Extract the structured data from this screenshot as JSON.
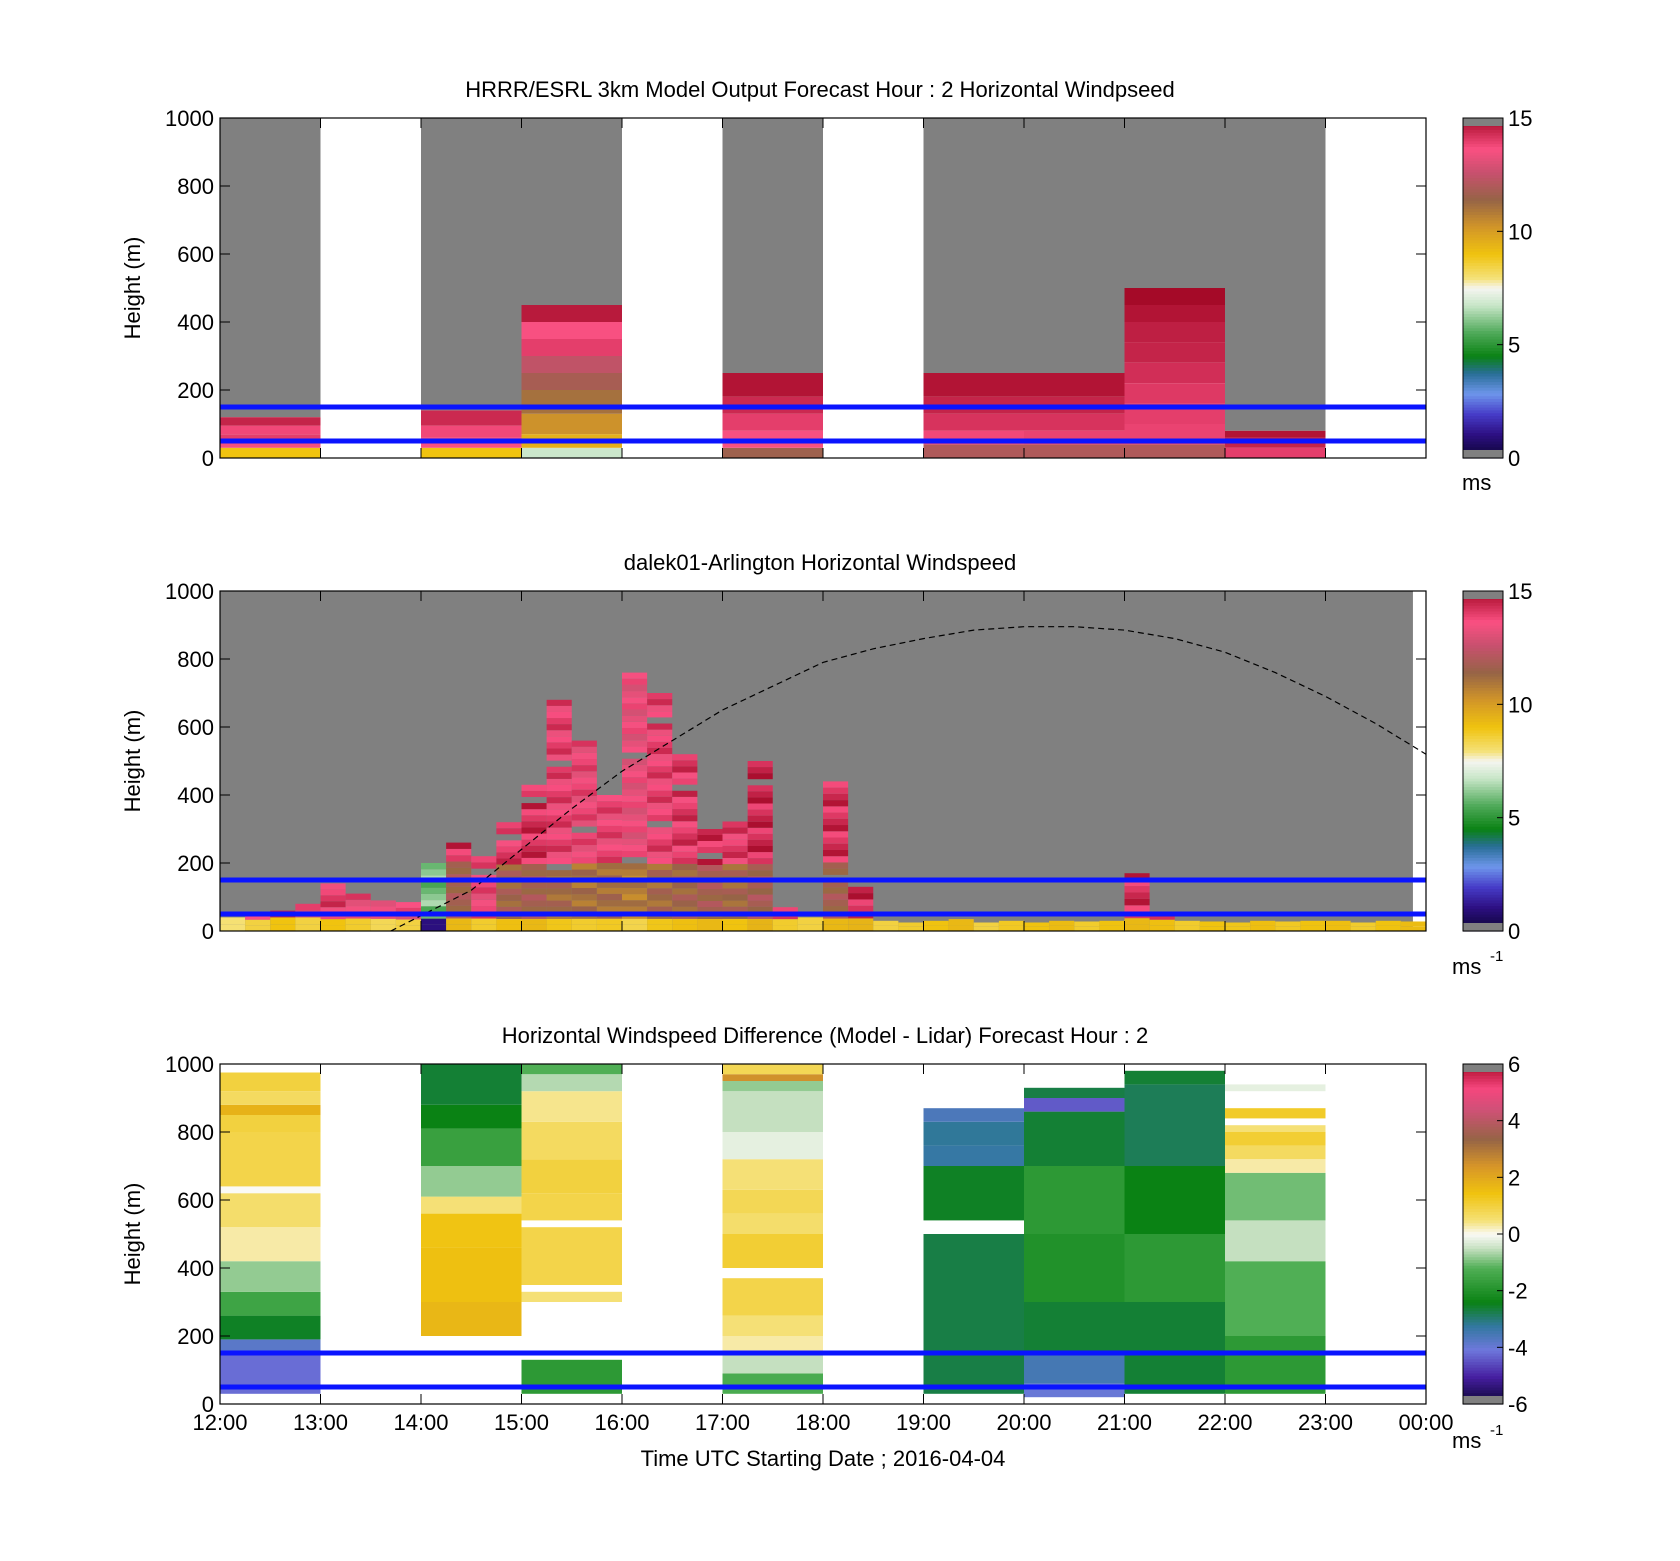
{
  "chart_data": [
    {
      "type": "heatmap",
      "title": "HRRR/ESRL 3km Model Output   Forecast Hour : 2 Horizontal Windpseed",
      "ylabel": "Height (m)",
      "ylim": [
        0,
        1000
      ],
      "yticks": [
        "0",
        "200",
        "400",
        "600",
        "800",
        "1000"
      ],
      "xlim": [
        12,
        24
      ],
      "colorbar": {
        "range": [
          0,
          15
        ],
        "ticks": [
          "0",
          "5",
          "10",
          "15"
        ],
        "unit_label": "ms"
      },
      "reference_lines": [
        50,
        150
      ],
      "reference_color": "#0a14ff",
      "missing_color": "#808080",
      "segments": [
        {
          "t0": 12,
          "t1": 13,
          "top": 120,
          "levels": [
            [
              0,
              30,
              9
            ],
            [
              30,
              50,
              13.5
            ],
            [
              50,
              70,
              14
            ],
            [
              70,
              95,
              13.8
            ],
            [
              95,
              120,
              14.5
            ]
          ]
        },
        {
          "t0": 14,
          "t1": 15,
          "top": 140,
          "levels": [
            [
              0,
              30,
              9
            ],
            [
              30,
              60,
              13.6
            ],
            [
              60,
              95,
              13.8
            ],
            [
              95,
              140,
              14.4
            ]
          ]
        },
        {
          "t0": 15,
          "t1": 16,
          "top": 450,
          "levels": [
            [
              0,
              30,
              6.8
            ],
            [
              30,
              70,
              9.5
            ],
            [
              70,
              130,
              10.3
            ],
            [
              130,
              200,
              11.1
            ],
            [
              200,
              250,
              11.8
            ],
            [
              250,
              300,
              12.4
            ],
            [
              300,
              350,
              14
            ],
            [
              350,
              400,
              13.6
            ],
            [
              400,
              450,
              14.7
            ]
          ]
        },
        {
          "t0": 17,
          "t1": 18,
          "top": 250,
          "levels": [
            [
              0,
              30,
              11.6
            ],
            [
              30,
              80,
              13.6
            ],
            [
              80,
              130,
              14
            ],
            [
              130,
              180,
              14.4
            ],
            [
              180,
              250,
              14.8
            ]
          ]
        },
        {
          "t0": 19,
          "t1": 20,
          "top": 250,
          "levels": [
            [
              0,
              40,
              12
            ],
            [
              40,
              80,
              13.8
            ],
            [
              80,
              130,
              14.2
            ],
            [
              130,
              180,
              14.5
            ],
            [
              180,
              250,
              14.8
            ]
          ]
        },
        {
          "t0": 20,
          "t1": 21,
          "top": 250,
          "levels": [
            [
              0,
              40,
              12
            ],
            [
              40,
              80,
              13.9
            ],
            [
              80,
              130,
              14.2
            ],
            [
              130,
              180,
              14.5
            ],
            [
              180,
              250,
              14.8
            ]
          ]
        },
        {
          "t0": 21,
          "t1": 22,
          "top": 500,
          "levels": [
            [
              0,
              40,
              12
            ],
            [
              40,
              100,
              13.9
            ],
            [
              100,
              160,
              14
            ],
            [
              160,
              220,
              14.1
            ],
            [
              220,
              280,
              14.3
            ],
            [
              280,
              340,
              14.5
            ],
            [
              340,
              400,
              14.6
            ],
            [
              400,
              450,
              14.8
            ],
            [
              450,
              500,
              15
            ]
          ]
        },
        {
          "t0": 22,
          "t1": 23,
          "top": 80,
          "levels": [
            [
              0,
              30,
              14
            ],
            [
              30,
              60,
              14.5
            ],
            [
              60,
              80,
              14.8
            ]
          ]
        }
      ]
    },
    {
      "type": "heatmap",
      "title": "dalek01-Arlington  Horizontal Windspeed",
      "ylabel": "Height (m)",
      "ylim": [
        0,
        1000
      ],
      "yticks": [
        "0",
        "200",
        "400",
        "600",
        "800",
        "1000"
      ],
      "xlim": [
        12,
        24
      ],
      "colorbar": {
        "range": [
          0,
          15
        ],
        "ticks": [
          "0",
          "5",
          "10",
          "15"
        ],
        "unit_label": "ms",
        "unit_sup": "-1"
      },
      "reference_lines": [
        50,
        150
      ],
      "reference_color": "#0a14ff",
      "missing_color": "#808080",
      "boundary_layer_curve": {
        "t": [
          13.7,
          14.5,
          15,
          15.5,
          16,
          16.5,
          17,
          17.5,
          18,
          18.5,
          19,
          19.5,
          20,
          20.5,
          21,
          21.5,
          22,
          22.5,
          23,
          23.5,
          24
        ],
        "h": [
          0,
          120,
          240,
          360,
          470,
          560,
          650,
          720,
          790,
          830,
          860,
          885,
          895,
          895,
          885,
          860,
          820,
          760,
          690,
          610,
          520
        ]
      },
      "columns": [
        {
          "t": 12.0,
          "top": 40,
          "v": 13.5
        },
        {
          "t": 12.25,
          "top": 50,
          "v": 14
        },
        {
          "t": 12.5,
          "top": 60,
          "v": 14.5
        },
        {
          "t": 12.75,
          "top": 80,
          "v": 14
        },
        {
          "t": 13.0,
          "top": 140,
          "v": 14.5
        },
        {
          "t": 13.25,
          "top": 110,
          "v": 14.2
        },
        {
          "t": 13.5,
          "top": 90,
          "v": 13.8
        },
        {
          "t": 13.75,
          "top": 85,
          "v": 14
        },
        {
          "t": 14.0,
          "top": 200,
          "v": 6.5
        },
        {
          "t": 14.25,
          "top": 260,
          "v": 14.8
        },
        {
          "t": 14.5,
          "top": 220,
          "v": 14.2
        },
        {
          "t": 14.75,
          "top": 320,
          "v": 14.6
        },
        {
          "t": 15.0,
          "top": 430,
          "v": 14.8
        },
        {
          "t": 15.25,
          "top": 680,
          "v": 14.4
        },
        {
          "t": 15.5,
          "top": 560,
          "v": 14.2
        },
        {
          "t": 15.75,
          "top": 400,
          "v": 14.3
        },
        {
          "t": 16.0,
          "top": 760,
          "v": 13.9
        },
        {
          "t": 16.25,
          "top": 700,
          "v": 14.4
        },
        {
          "t": 16.5,
          "top": 520,
          "v": 14.6
        },
        {
          "t": 16.75,
          "top": 300,
          "v": 14.8
        },
        {
          "t": 17.0,
          "top": 340,
          "v": 14.5
        },
        {
          "t": 17.25,
          "top": 500,
          "v": 14.9
        },
        {
          "t": 17.5,
          "top": 70,
          "v": 14.2
        },
        {
          "t": 17.75,
          "top": 40,
          "v": 14
        },
        {
          "t": 18.0,
          "top": 440,
          "v": 14.8
        },
        {
          "t": 18.25,
          "top": 130,
          "v": 14.9
        },
        {
          "t": 18.5,
          "top": 30,
          "v": 14
        },
        {
          "t": 18.75,
          "top": 25,
          "v": 14.2
        },
        {
          "t": 19.0,
          "top": 30,
          "v": 14.5
        },
        {
          "t": 19.25,
          "top": 35,
          "v": 14.8
        },
        {
          "t": 19.5,
          "top": 25,
          "v": 14
        },
        {
          "t": 19.75,
          "top": 30,
          "v": 14.3
        },
        {
          "t": 20.0,
          "top": 25,
          "v": 14.5
        },
        {
          "t": 20.25,
          "top": 30,
          "v": 14.7
        },
        {
          "t": 20.5,
          "top": 28,
          "v": 14.2
        },
        {
          "t": 20.75,
          "top": 30,
          "v": 14.5
        },
        {
          "t": 21.0,
          "top": 170,
          "v": 14.8
        },
        {
          "t": 21.25,
          "top": 50,
          "v": 14.6
        },
        {
          "t": 21.5,
          "top": 30,
          "v": 14.2
        },
        {
          "t": 21.75,
          "top": 28,
          "v": 14.5
        },
        {
          "t": 22.0,
          "top": 25,
          "v": 14.4
        },
        {
          "t": 22.25,
          "top": 30,
          "v": 14.6
        },
        {
          "t": 22.5,
          "top": 28,
          "v": 14.3
        },
        {
          "t": 22.75,
          "top": 30,
          "v": 14.5
        },
        {
          "t": 23.0,
          "top": 30,
          "v": 14.6
        },
        {
          "t": 23.25,
          "top": 25,
          "v": 14.2
        },
        {
          "t": 23.5,
          "top": 30,
          "v": 14.5
        },
        {
          "t": 23.75,
          "top": 28,
          "v": 14.7
        }
      ]
    },
    {
      "type": "heatmap",
      "title": "Horizontal Windspeed Difference (Model - Lidar) Forecast Hour : 2",
      "ylabel": "Height (m)",
      "xlabel": "Time UTC  Starting Date ; 2016-04-04",
      "ylim": [
        0,
        1000
      ],
      "yticks": [
        "0",
        "200",
        "400",
        "600",
        "800",
        "1000"
      ],
      "xlim": [
        12,
        24
      ],
      "xticks": [
        "12:00",
        "13:00",
        "14:00",
        "15:00",
        "16:00",
        "17:00",
        "18:00",
        "19:00",
        "20:00",
        "21:00",
        "22:00",
        "23:00",
        "00:00"
      ],
      "colorbar": {
        "range": [
          -6,
          6
        ],
        "ticks": [
          "-6",
          "-4",
          "-2",
          "0",
          "2",
          "4",
          "6"
        ],
        "unit_label": "ms",
        "unit_sup": "-1"
      },
      "reference_lines": [
        50,
        150
      ],
      "reference_color": "#0a14ff",
      "segments": [
        {
          "t0": 12,
          "t1": 13,
          "levels": [
            [
              30,
              150,
              -4.2
            ],
            [
              150,
              190,
              -3.8
            ],
            [
              190,
              260,
              -2.5
            ],
            [
              260,
              330,
              -1.5
            ],
            [
              330,
              420,
              -0.8
            ],
            [
              420,
              520,
              0.3
            ],
            [
              520,
              620,
              0.6
            ],
            [
              620,
              640,
              0
            ],
            [
              640,
              800,
              0.9
            ],
            [
              800,
              850,
              1
            ],
            [
              850,
              880,
              1.8
            ],
            [
              880,
              920,
              0.7
            ],
            [
              920,
              975,
              1
            ]
          ]
        },
        {
          "t0": 14,
          "t1": 15,
          "levels": [
            [
              200,
              300,
              1.7
            ],
            [
              300,
              460,
              1.5
            ],
            [
              460,
              560,
              1.4
            ],
            [
              560,
              610,
              0.5
            ],
            [
              610,
              700,
              -0.8
            ],
            [
              700,
              810,
              -1.6
            ],
            [
              810,
              880,
              -2.4
            ],
            [
              880,
              1000,
              -2.6
            ]
          ]
        },
        {
          "t0": 15,
          "t1": 16,
          "levels": [
            [
              30,
              130,
              -1.8
            ],
            [
              300,
              330,
              0.5
            ],
            [
              350,
              520,
              0.9
            ],
            [
              540,
              620,
              0.9
            ],
            [
              620,
              720,
              1
            ],
            [
              720,
              830,
              0.7
            ],
            [
              830,
              920,
              0.4
            ],
            [
              920,
              970,
              -0.6
            ],
            [
              970,
              1000,
              -1.2
            ]
          ]
        },
        {
          "t0": 17,
          "t1": 18,
          "levels": [
            [
              30,
              90,
              -1.3
            ],
            [
              90,
              150,
              -0.5
            ],
            [
              150,
              200,
              0.3
            ],
            [
              200,
              260,
              0.5
            ],
            [
              260,
              370,
              0.9
            ],
            [
              400,
              500,
              1.1
            ],
            [
              500,
              560,
              0.6
            ],
            [
              560,
              630,
              0.8
            ],
            [
              630,
              720,
              0.5
            ],
            [
              720,
              800,
              -0.2
            ],
            [
              800,
              920,
              -0.5
            ],
            [
              920,
              950,
              -0.8
            ],
            [
              950,
              970,
              2.5
            ],
            [
              970,
              1000,
              0.8
            ]
          ]
        },
        {
          "t0": 19,
          "t1": 20,
          "levels": [
            [
              30,
              500,
              -2.7
            ],
            [
              540,
              700,
              -2.5
            ],
            [
              700,
              760,
              -3.3
            ],
            [
              760,
              830,
              -3.2
            ],
            [
              830,
              870,
              -3.6
            ]
          ]
        },
        {
          "t0": 20,
          "t1": 21,
          "levels": [
            [
              20,
              60,
              -4
            ],
            [
              60,
              150,
              -3.5
            ],
            [
              150,
              300,
              -2.6
            ],
            [
              300,
              500,
              -2
            ],
            [
              500,
              700,
              -1.8
            ],
            [
              700,
              860,
              -2.6
            ],
            [
              860,
              900,
              -4.4
            ],
            [
              900,
              930,
              -2.7
            ]
          ]
        },
        {
          "t0": 21,
          "t1": 22,
          "levels": [
            [
              30,
              300,
              -2.6
            ],
            [
              300,
              500,
              -1.8
            ],
            [
              500,
              700,
              -2.4
            ],
            [
              700,
              940,
              -2.8
            ],
            [
              940,
              980,
              -2.6
            ]
          ]
        },
        {
          "t0": 22,
          "t1": 23,
          "levels": [
            [
              30,
              200,
              -1.8
            ],
            [
              200,
              420,
              -1.2
            ],
            [
              420,
              540,
              -0.5
            ],
            [
              540,
              680,
              -1
            ],
            [
              680,
              720,
              0.3
            ],
            [
              720,
              760,
              0.7
            ],
            [
              760,
              800,
              1.1
            ],
            [
              800,
              820,
              0.5
            ],
            [
              840,
              870,
              1.2
            ],
            [
              920,
              940,
              -0.2
            ]
          ]
        }
      ]
    }
  ]
}
